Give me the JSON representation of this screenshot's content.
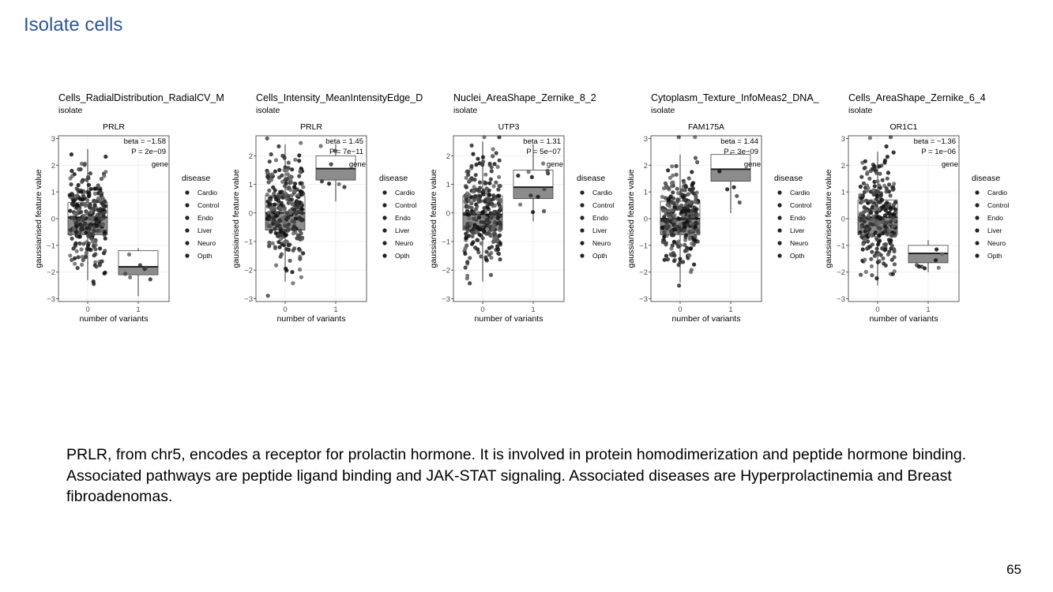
{
  "slide": {
    "title": "Isolate cells",
    "description": "PRLR, from chr5, encodes a receptor for prolactin hormone. It is involved in protein homodimerization and peptide hormone binding. Associated pathways are peptide ligand binding and JAK-STAT signaling. Associated diseases are Hyperprolactinemia and Breast fibroadenomas.",
    "page_number": "65"
  },
  "chart_data": [
    {
      "type": "box+jitter",
      "title": "Cells_RadialDistribution_RadialCV_M",
      "subtitle": "isolate",
      "facet": "PRLR",
      "xlabel": "number of variants",
      "ylabel": "gaussianised feature value",
      "categories": [
        "0",
        "1"
      ],
      "ylim": [
        -3.1,
        3.1
      ],
      "yticks": [
        -3,
        -2,
        -1,
        0,
        1,
        2,
        3
      ],
      "stats": {
        "beta": "beta = −1.58",
        "p": "P = 2e−09"
      },
      "gene_label": "gene",
      "boxes": [
        {
          "category": "0",
          "q1": -0.6,
          "median": 0.05,
          "q3": 0.6,
          "whisker_low": -2.3,
          "whisker_high": 2.6,
          "n_points": 300
        },
        {
          "category": "1",
          "q1": -2.1,
          "median": -1.8,
          "q3": -1.2,
          "whisker_low": -2.9,
          "whisker_high": -1.1,
          "n_points": 7
        }
      ],
      "legend": {
        "title": "disease",
        "entries": [
          "Cardio",
          "Control",
          "Endo",
          "Liver",
          "Neuro",
          "Opth"
        ],
        "placement": "right"
      }
    },
    {
      "type": "box+jitter",
      "title": "Cells_Intensity_MeanIntensityEdge_D",
      "subtitle": "isolate",
      "facet": "PRLR",
      "xlabel": "number of variants",
      "ylabel": "gaussianised feature value",
      "categories": [
        "0",
        "1"
      ],
      "ylim": [
        -3.1,
        2.7
      ],
      "yticks": [
        -3,
        -2,
        -1,
        0,
        1,
        2
      ],
      "stats": {
        "beta": "beta = 1.45",
        "p": "P = 7e−11"
      },
      "gene_label": "gene",
      "boxes": [
        {
          "category": "0",
          "q1": -0.6,
          "median": 0.0,
          "q3": 0.6,
          "whisker_low": -2.4,
          "whisker_high": 2.4,
          "n_points": 300
        },
        {
          "category": "1",
          "q1": 1.15,
          "median": 1.55,
          "q3": 2.0,
          "whisker_low": 0.4,
          "whisker_high": 2.4,
          "n_points": 7
        }
      ],
      "legend": {
        "title": "disease",
        "entries": [
          "Cardio",
          "Control",
          "Endo",
          "Liver",
          "Neuro",
          "Opth"
        ],
        "placement": "right"
      }
    },
    {
      "type": "box+jitter",
      "title": "Nuclei_AreaShape_Zernike_8_2",
      "subtitle": "isolate",
      "facet": "UTP3",
      "xlabel": "number of variants",
      "ylabel": "gaussianised feature value",
      "categories": [
        "0",
        "1"
      ],
      "ylim": [
        -3.1,
        2.7
      ],
      "yticks": [
        -3,
        -2,
        -1,
        0,
        1,
        2
      ],
      "stats": {
        "beta": "beta = 1.31",
        "p": "P = 5e−07"
      },
      "gene_label": "gene",
      "boxes": [
        {
          "category": "0",
          "q1": -0.6,
          "median": -0.05,
          "q3": 0.6,
          "whisker_low": -2.4,
          "whisker_high": 2.5,
          "n_points": 300
        },
        {
          "category": "1",
          "q1": 0.5,
          "median": 0.9,
          "q3": 1.5,
          "whisker_low": -0.3,
          "whisker_high": 2.4,
          "n_points": 12
        }
      ],
      "legend": {
        "title": "disease",
        "entries": [
          "Cardio",
          "Control",
          "Endo",
          "Liver",
          "Neuro",
          "Opth"
        ],
        "placement": "right"
      }
    },
    {
      "type": "box+jitter",
      "title": "Cytoplasm_Texture_InfoMeas2_DNA_",
      "subtitle": "isolate",
      "facet": "FAM175A",
      "xlabel": "number of variants",
      "ylabel": "gaussianised feature value",
      "categories": [
        "0",
        "1"
      ],
      "ylim": [
        -3.1,
        3.1
      ],
      "yticks": [
        -3,
        -2,
        -1,
        0,
        1,
        2,
        3
      ],
      "stats": {
        "beta": "beta = 1.44",
        "p": "P = 3e−09"
      },
      "gene_label": "gene",
      "boxes": [
        {
          "category": "0",
          "q1": -0.6,
          "median": 0.0,
          "q3": 0.65,
          "whisker_low": -2.4,
          "whisker_high": 2.4,
          "n_points": 300
        },
        {
          "category": "1",
          "q1": 1.4,
          "median": 1.85,
          "q3": 2.4,
          "whisker_low": 0.2,
          "whisker_high": 2.5,
          "n_points": 5
        }
      ],
      "legend": {
        "title": "disease",
        "entries": [
          "Cardio",
          "Control",
          "Endo",
          "Liver",
          "Neuro",
          "Opth"
        ],
        "placement": "right"
      }
    },
    {
      "type": "box+jitter",
      "title": "Cells_AreaShape_Zernike_6_4",
      "subtitle": "isolate",
      "facet": "OR1C1",
      "xlabel": "number of variants",
      "ylabel": "gaussianised feature value",
      "categories": [
        "0",
        "1"
      ],
      "ylim": [
        -3.1,
        3.1
      ],
      "yticks": [
        -3,
        -2,
        -1,
        0,
        1,
        2,
        3
      ],
      "stats": {
        "beta": "beta = −1.36",
        "p": "P = 1e−06"
      },
      "gene_label": "gene",
      "boxes": [
        {
          "category": "0",
          "q1": -0.6,
          "median": 0.05,
          "q3": 0.7,
          "whisker_low": -2.5,
          "whisker_high": 2.5,
          "n_points": 300
        },
        {
          "category": "1",
          "q1": -1.65,
          "median": -1.3,
          "q3": -1.0,
          "whisker_low": -2.0,
          "whisker_high": -0.8,
          "n_points": 8
        }
      ],
      "legend": {
        "title": "disease",
        "entries": [
          "Cardio",
          "Control",
          "Endo",
          "Liver",
          "Neuro",
          "Opth"
        ],
        "placement": "right"
      }
    }
  ]
}
